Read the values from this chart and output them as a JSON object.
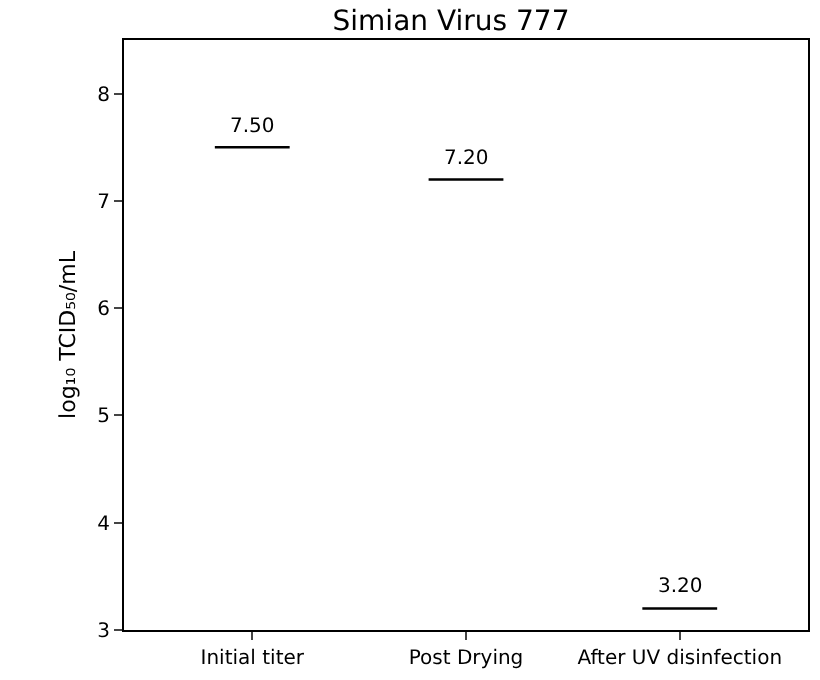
{
  "chart_data": {
    "type": "box",
    "title": "Simian Virus 777",
    "ylabel": "log₁₀ TCID₅₀/mL",
    "categories": [
      "Initial titer",
      "Post Drying",
      "After UV disinfection"
    ],
    "boxes": [
      {
        "low": 7.5,
        "q1": 7.5,
        "median": 7.5,
        "q3": 7.5,
        "high": 7.5
      },
      {
        "low": 7.2,
        "q1": 7.2,
        "median": 7.2,
        "q3": 7.2,
        "high": 7.2
      },
      {
        "low": 3.2,
        "q1": 3.2,
        "median": 3.2,
        "q3": 3.2,
        "high": 3.2
      }
    ],
    "value_labels": [
      "7.50",
      "7.20",
      "3.20"
    ],
    "color": "#000000",
    "ylim": [
      3,
      8.5
    ],
    "yticks": [
      3,
      4,
      5,
      6,
      7,
      8
    ],
    "legend": false
  }
}
